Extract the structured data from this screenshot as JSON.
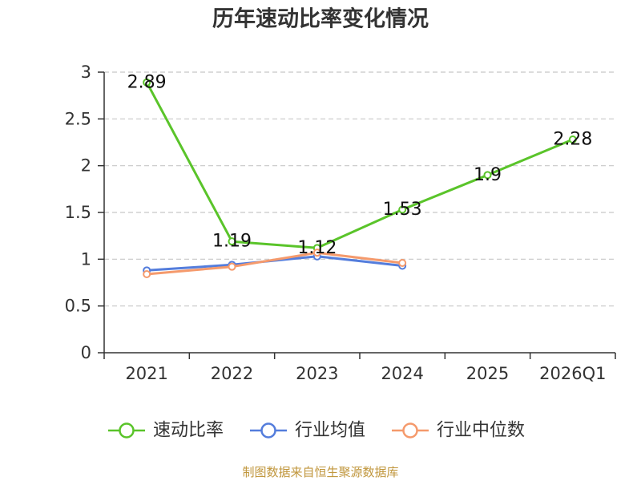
{
  "footer": "制图数据来自恒生聚源数据库",
  "colors": {
    "series": [
      "#5ac42a",
      "#547ddc",
      "#f59a6c"
    ],
    "axis": "#333333",
    "grid": "#c8c8c8",
    "footer": "#c0963c"
  },
  "chart_data": {
    "type": "line",
    "title": "历年速动比率变化情况",
    "categories": [
      "2021",
      "2022",
      "2023",
      "2024",
      "2025",
      "2026Q1"
    ],
    "ylim": [
      0,
      3
    ],
    "yticks": [
      0,
      0.5,
      1,
      1.5,
      2,
      2.5,
      3
    ],
    "grid": true,
    "legend": "bottom",
    "series": [
      {
        "name": "速动比率",
        "values": [
          2.89,
          1.19,
          1.12,
          1.53,
          1.9,
          2.28
        ],
        "show_labels": true
      },
      {
        "name": "行业均值",
        "values": [
          0.88,
          0.94,
          1.03,
          0.93,
          null,
          null
        ],
        "show_labels": false
      },
      {
        "name": "行业中位数",
        "values": [
          0.84,
          0.92,
          1.07,
          0.96,
          null,
          null
        ],
        "show_labels": false
      }
    ]
  }
}
